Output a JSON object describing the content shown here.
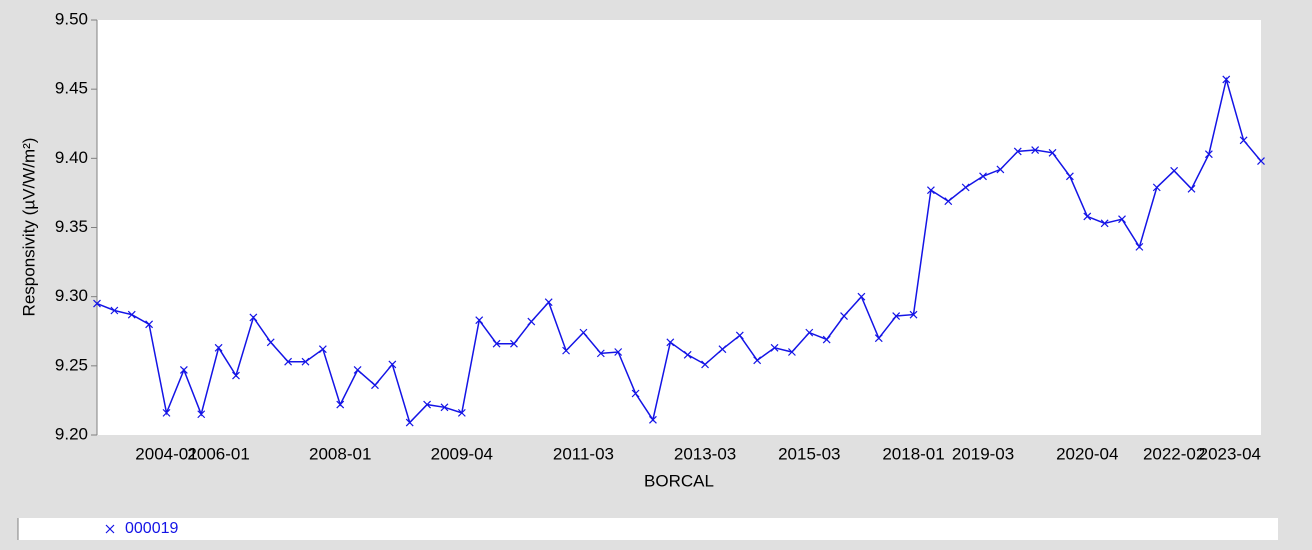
{
  "chart_data": {
    "type": "line",
    "x_label": "BORCAL",
    "y_label": "Responsivity (µV/W/m²)",
    "categories": [
      null,
      null,
      null,
      null,
      "2004-01",
      null,
      null,
      "2006-01",
      null,
      null,
      null,
      null,
      null,
      null,
      "2008-01",
      null,
      null,
      null,
      null,
      null,
      null,
      "2009-04",
      null,
      null,
      null,
      null,
      null,
      null,
      "2011-03",
      null,
      null,
      null,
      null,
      null,
      null,
      "2013-03",
      null,
      null,
      null,
      null,
      null,
      "2015-03",
      null,
      null,
      null,
      null,
      null,
      "2018-01",
      null,
      null,
      null,
      "2019-03",
      null,
      null,
      null,
      null,
      null,
      "2020-04",
      null,
      null,
      null,
      null,
      "2022-02",
      null,
      null,
      null,
      null,
      "2023-04"
    ],
    "series": [
      {
        "name": "000019",
        "color": "#1414e6",
        "values": [
          9.295,
          9.29,
          9.287,
          9.28,
          9.216,
          9.247,
          9.215,
          9.263,
          9.243,
          9.285,
          9.267,
          9.253,
          9.253,
          9.262,
          9.222,
          9.247,
          9.236,
          9.251,
          9.209,
          9.222,
          9.22,
          9.216,
          9.283,
          9.266,
          9.266,
          9.282,
          9.296,
          9.261,
          9.274,
          9.259,
          9.26,
          9.23,
          9.211,
          9.267,
          9.258,
          9.251,
          9.262,
          9.272,
          9.254,
          9.263,
          9.26,
          9.274,
          9.269,
          9.286,
          9.3,
          9.27,
          9.286,
          9.287,
          9.377,
          9.369,
          9.379,
          9.387,
          9.392,
          9.405,
          9.406,
          9.404,
          9.387,
          9.358,
          9.353,
          9.356,
          9.336,
          9.379,
          9.391,
          9.378,
          9.403,
          9.457,
          9.413,
          9.398
        ]
      }
    ],
    "ylim": [
      9.2,
      9.5
    ],
    "yticks": [
      {
        "value": 9.2,
        "label": "9.20"
      },
      {
        "value": 9.25,
        "label": "9.25"
      },
      {
        "value": 9.3,
        "label": "9.30"
      },
      {
        "value": 9.35,
        "label": "9.35"
      },
      {
        "value": 9.4,
        "label": "9.40"
      },
      {
        "value": 9.45,
        "label": "9.45"
      },
      {
        "value": 9.5,
        "label": "9.50"
      }
    ],
    "grid": false
  }
}
